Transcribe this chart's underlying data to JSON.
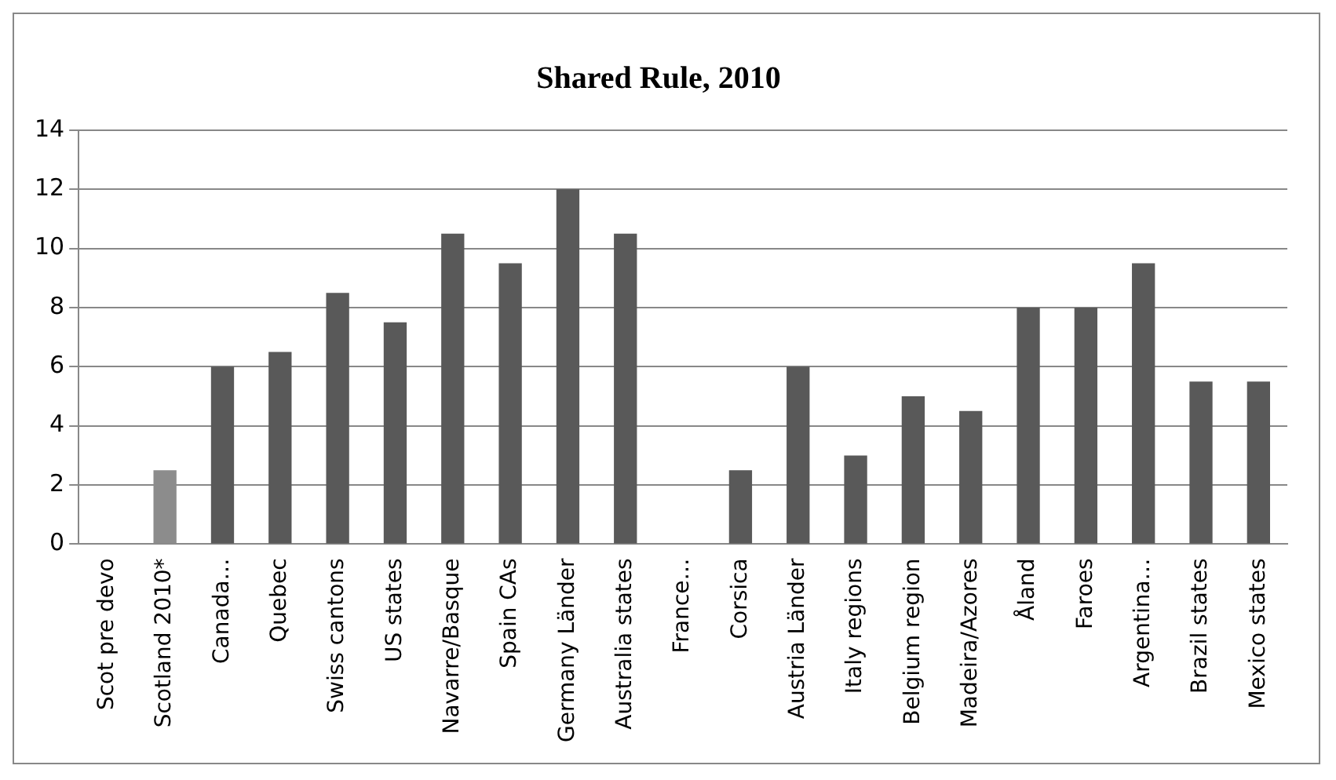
{
  "chart_data": {
    "type": "bar",
    "title": "Shared Rule, 2010",
    "categories": [
      "Scot pre devo",
      "Scotland 2010*",
      "Canada…",
      "Quebec",
      "Swiss cantons",
      "US states",
      "Navarre/Basque",
      "Spain CAs",
      "Germany Länder",
      "Australia states",
      "France…",
      "Corsica",
      "Austria Länder",
      "Italy regions",
      "Belgium region",
      "Madeira/Azores",
      "Åland",
      "Faroes",
      "Argentina…",
      "Brazil states",
      "Mexico states"
    ],
    "values": [
      0,
      2.5,
      6,
      6.5,
      8.5,
      7.5,
      10.5,
      9.5,
      12,
      10.5,
      0,
      2.5,
      6,
      3,
      5,
      4.5,
      8,
      8,
      9.5,
      5.5,
      5.5
    ],
    "colors": [
      "#595959",
      "#8c8c8c",
      "#595959",
      "#595959",
      "#595959",
      "#595959",
      "#595959",
      "#595959",
      "#595959",
      "#595959",
      "#595959",
      "#595959",
      "#595959",
      "#595959",
      "#595959",
      "#595959",
      "#595959",
      "#595959",
      "#595959",
      "#595959",
      "#595959"
    ],
    "ylim": [
      0,
      14
    ],
    "yticks": [
      0,
      2,
      4,
      6,
      8,
      10,
      12,
      14
    ],
    "grid": "y",
    "legend": false
  }
}
